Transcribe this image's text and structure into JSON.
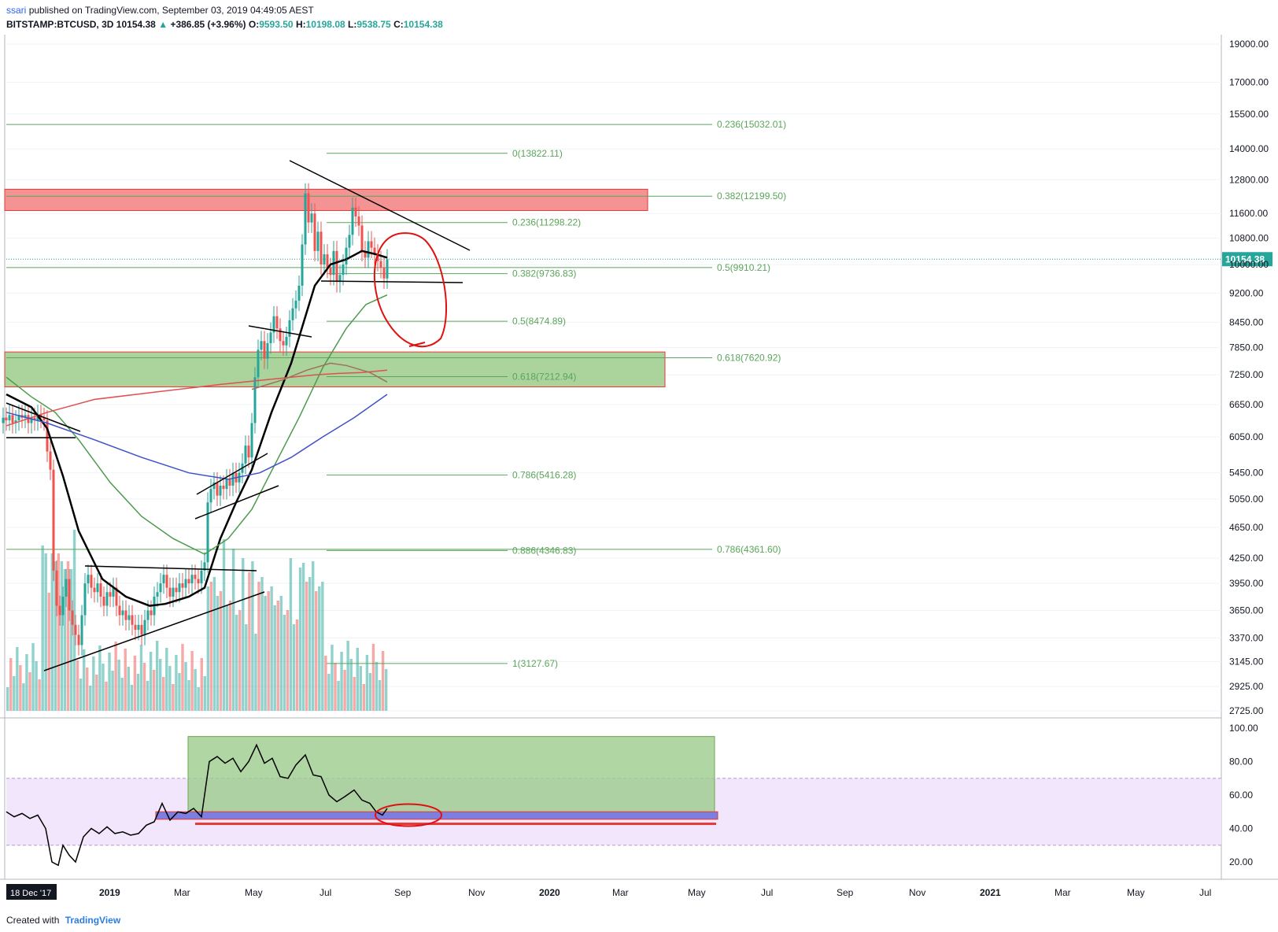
{
  "header": {
    "user": "ssari",
    "published": "published on TradingView.com, September 03, 2019 04:49:05 AEST",
    "symbol": "BITSTAMP:BTCUSD, 3D",
    "last": "10154.38",
    "change_arrow": "▲",
    "change": "+386.85 (+3.96%)",
    "o_label": "O:",
    "o": "9593.50",
    "h_label": "H:",
    "h": "10198.08",
    "l_label": "L:",
    "l": "9538.75",
    "c_label": "C:",
    "c": "10154.38"
  },
  "footer": {
    "created_with": "Created with",
    "brand": "TradingView"
  },
  "colors": {
    "up": "#26a69a",
    "down": "#ef5350",
    "ma_black": "#000000",
    "ma_green": "#4c9a4c",
    "ma_red": "#e05050",
    "ma_blue": "#3f51c7",
    "ma_brown": "#a0705a",
    "fib_green": "#5aa55a",
    "resistance_zone": "#f28080",
    "support_zone": "#9ccc8c",
    "rsi_zone": "#f1e6fb",
    "annotation_red": "#e01010"
  },
  "chart_data": [
    {
      "type": "candlestick",
      "title": "BITSTAMP:BTCUSD, 3D",
      "y_scale": "log",
      "ylim": [
        2725,
        19000
      ],
      "price_ticks": [
        "19000.00",
        "17000.00",
        "15500.00",
        "14000.00",
        "12800.00",
        "11600.00",
        "10800.00",
        "10000.00",
        "9200.00",
        "8450.00",
        "7850.00",
        "7250.00",
        "6650.00",
        "6050.00",
        "5450.00",
        "5050.00",
        "4650.00",
        "4250.00",
        "3950.00",
        "3650.00",
        "3370.00",
        "3145.00",
        "2925.00",
        "2725.00"
      ],
      "time_ticks": [
        "18 Dec '17",
        "2019",
        "Mar",
        "May",
        "Jul",
        "Sep",
        "Nov",
        "2020",
        "Mar",
        "May",
        "Jul",
        "Sep",
        "Nov",
        "2021",
        "Mar",
        "May",
        "Jul"
      ],
      "last_price_label": "10154.38",
      "fib_retracement_small": [
        {
          "label": "0(13822.11)",
          "value": 13822.11
        },
        {
          "label": "0.236(11298.22)",
          "value": 11298.22
        },
        {
          "label": "0.382(9736.83)",
          "value": 9736.83
        },
        {
          "label": "0.5(8474.89)",
          "value": 8474.89
        },
        {
          "label": "0.618(7212.94)",
          "value": 7212.94
        },
        {
          "label": "0.786(5416.28)",
          "value": 5416.28
        },
        {
          "label": "0.886(4346.83)",
          "value": 4346.83
        },
        {
          "label": "1(3127.67)",
          "value": 3127.67
        }
      ],
      "fib_retracement_large": [
        {
          "label": "0.236(15032.01)",
          "value": 15032.01
        },
        {
          "label": "0.382(12199.50)",
          "value": 12199.5
        },
        {
          "label": "0.5(9910.21)",
          "value": 9910.21
        },
        {
          "label": "0.618(7620.92)",
          "value": 7620.92
        },
        {
          "label": "0.786(4361.60)",
          "value": 4361.6
        }
      ],
      "zones": [
        {
          "name": "resistance",
          "low": 11700,
          "high": 12450,
          "color": "#f28080"
        },
        {
          "name": "support",
          "low": 7000,
          "high": 7750,
          "color": "#9ccc8c"
        }
      ],
      "price_path": [
        [
          0,
          6300
        ],
        [
          4,
          6400
        ],
        [
          8,
          6350
        ],
        [
          12,
          6450
        ],
        [
          16,
          6300
        ],
        [
          20,
          6350
        ],
        [
          24,
          6450
        ],
        [
          28,
          6400
        ],
        [
          32,
          6450
        ],
        [
          36,
          6300
        ],
        [
          40,
          6400
        ],
        [
          44,
          6350
        ],
        [
          48,
          6450
        ],
        [
          52,
          6400
        ],
        [
          56,
          6350
        ],
        [
          60,
          5800
        ],
        [
          64,
          5500
        ],
        [
          68,
          4100
        ],
        [
          72,
          3700
        ],
        [
          76,
          3600
        ],
        [
          80,
          3800
        ],
        [
          84,
          4000
        ],
        [
          88,
          3650
        ],
        [
          92,
          3500
        ],
        [
          96,
          3400
        ],
        [
          100,
          3300
        ],
        [
          104,
          3600
        ],
        [
          108,
          3950
        ],
        [
          112,
          4050
        ],
        [
          116,
          3900
        ],
        [
          120,
          3850
        ],
        [
          124,
          3950
        ],
        [
          128,
          3800
        ],
        [
          132,
          3700
        ],
        [
          136,
          3850
        ],
        [
          140,
          3800
        ],
        [
          144,
          3900
        ],
        [
          148,
          3700
        ],
        [
          152,
          3600
        ],
        [
          156,
          3650
        ],
        [
          160,
          3550
        ],
        [
          164,
          3600
        ],
        [
          168,
          3500
        ],
        [
          172,
          3450
        ],
        [
          176,
          3500
        ],
        [
          180,
          3400
        ],
        [
          184,
          3550
        ],
        [
          188,
          3650
        ],
        [
          192,
          3600
        ],
        [
          196,
          3800
        ],
        [
          200,
          3850
        ],
        [
          204,
          3950
        ],
        [
          208,
          4050
        ],
        [
          212,
          3900
        ],
        [
          216,
          3800
        ],
        [
          220,
          3900
        ],
        [
          224,
          3850
        ],
        [
          228,
          3950
        ],
        [
          232,
          3900
        ],
        [
          236,
          4000
        ],
        [
          240,
          3950
        ],
        [
          244,
          4050
        ],
        [
          248,
          4000
        ],
        [
          252,
          3950
        ],
        [
          256,
          4100
        ],
        [
          260,
          4200
        ],
        [
          264,
          5000
        ],
        [
          268,
          5200
        ],
        [
          272,
          5300
        ],
        [
          276,
          5100
        ],
        [
          280,
          5250
        ],
        [
          284,
          5200
        ],
        [
          288,
          5350
        ],
        [
          292,
          5250
        ],
        [
          296,
          5450
        ],
        [
          300,
          5300
        ],
        [
          304,
          5450
        ],
        [
          308,
          5600
        ],
        [
          312,
          5900
        ],
        [
          316,
          5700
        ],
        [
          320,
          6300
        ],
        [
          324,
          7200
        ],
        [
          328,
          7800
        ],
        [
          332,
          8000
        ],
        [
          336,
          7600
        ],
        [
          340,
          7950
        ],
        [
          344,
          8200
        ],
        [
          348,
          8600
        ],
        [
          352,
          8300
        ],
        [
          356,
          8000
        ],
        [
          360,
          7900
        ],
        [
          364,
          8100
        ],
        [
          368,
          8500
        ],
        [
          372,
          8800
        ],
        [
          376,
          9000
        ],
        [
          380,
          9400
        ],
        [
          384,
          10600
        ],
        [
          388,
          12300
        ],
        [
          392,
          11300
        ],
        [
          396,
          11600
        ],
        [
          400,
          10400
        ],
        [
          404,
          11000
        ],
        [
          408,
          10000
        ],
        [
          412,
          10300
        ],
        [
          416,
          9900
        ],
        [
          420,
          9700
        ],
        [
          424,
          10400
        ],
        [
          428,
          9500
        ],
        [
          432,
          9700
        ],
        [
          436,
          10000
        ],
        [
          440,
          10500
        ],
        [
          444,
          10900
        ],
        [
          448,
          11800
        ],
        [
          452,
          11500
        ],
        [
          456,
          11200
        ],
        [
          460,
          10400
        ],
        [
          464,
          10200
        ],
        [
          468,
          10700
        ],
        [
          472,
          10500
        ],
        [
          476,
          10300
        ],
        [
          480,
          10100
        ],
        [
          484,
          9900
        ],
        [
          488,
          9600
        ],
        [
          492,
          10154
        ]
      ],
      "volume_bars": {
        "bars": 120,
        "x_start": 8,
        "x_end": 493
      },
      "moving_averages": [
        {
          "name": "",
          "color": "#000000",
          "points": [
            [
              8,
              6850
            ],
            [
              40,
              6600
            ],
            [
              60,
              6200
            ],
            [
              80,
              5400
            ],
            [
              100,
              4600
            ],
            [
              130,
              4000
            ],
            [
              160,
              3800
            ],
            [
              190,
              3700
            ],
            [
              210,
              3720
            ],
            [
              240,
              3800
            ],
            [
              260,
              3900
            ],
            [
              280,
              4500
            ],
            [
              300,
              5000
            ],
            [
              320,
              5500
            ],
            [
              345,
              6500
            ],
            [
              370,
              7500
            ],
            [
              400,
              9400
            ],
            [
              420,
              10000
            ],
            [
              440,
              10150
            ],
            [
              460,
              10400
            ],
            [
              478,
              10300
            ],
            [
              492,
              10200
            ]
          ]
        },
        {
          "name": "",
          "color": "#4c9a4c",
          "points": [
            [
              8,
              7200
            ],
            [
              40,
              6800
            ],
            [
              70,
              6500
            ],
            [
              100,
              6000
            ],
            [
              140,
              5300
            ],
            [
              180,
              4800
            ],
            [
              220,
              4500
            ],
            [
              260,
              4300
            ],
            [
              290,
              4500
            ],
            [
              320,
              4900
            ],
            [
              350,
              5600
            ],
            [
              380,
              6400
            ],
            [
              410,
              7400
            ],
            [
              440,
              8300
            ],
            [
              465,
              8900
            ],
            [
              492,
              9150
            ]
          ]
        },
        {
          "name": "",
          "color": "#e05050",
          "points": [
            [
              8,
              6250
            ],
            [
              60,
              6500
            ],
            [
              120,
              6750
            ],
            [
              200,
              6900
            ],
            [
              280,
              7050
            ],
            [
              340,
              7150
            ],
            [
              400,
              7250
            ],
            [
              430,
              7280
            ],
            [
              460,
              7300
            ],
            [
              492,
              7350
            ]
          ]
        },
        {
          "name": "",
          "color": "#3f51c7",
          "points": [
            [
              8,
              6500
            ],
            [
              60,
              6300
            ],
            [
              120,
              6000
            ],
            [
              180,
              5700
            ],
            [
              240,
              5450
            ],
            [
              290,
              5350
            ],
            [
              330,
              5450
            ],
            [
              370,
              5700
            ],
            [
              410,
              6050
            ],
            [
              450,
              6400
            ],
            [
              492,
              6850
            ]
          ]
        },
        {
          "name": "",
          "color": "#a0705a",
          "points": [
            [
              320,
              6950
            ],
            [
              360,
              7150
            ],
            [
              390,
              7350
            ],
            [
              420,
              7500
            ],
            [
              440,
              7450
            ],
            [
              470,
              7300
            ],
            [
              492,
              7100
            ]
          ]
        }
      ]
    },
    {
      "type": "line",
      "title": "RSI",
      "ylim": [
        15,
        100
      ],
      "y_ticks": [
        "100.00",
        "80.00",
        "60.00",
        "40.00",
        "20.00"
      ],
      "band": [
        30,
        70
      ],
      "points": [
        [
          8,
          50
        ],
        [
          18,
          47
        ],
        [
          28,
          49
        ],
        [
          38,
          46
        ],
        [
          48,
          48
        ],
        [
          58,
          40
        ],
        [
          66,
          20
        ],
        [
          74,
          18
        ],
        [
          80,
          30
        ],
        [
          88,
          24
        ],
        [
          96,
          20
        ],
        [
          106,
          35
        ],
        [
          116,
          40
        ],
        [
          126,
          37
        ],
        [
          136,
          41
        ],
        [
          146,
          37
        ],
        [
          156,
          38
        ],
        [
          166,
          36
        ],
        [
          176,
          37
        ],
        [
          186,
          42
        ],
        [
          196,
          44
        ],
        [
          206,
          55
        ],
        [
          216,
          45
        ],
        [
          226,
          50
        ],
        [
          236,
          49
        ],
        [
          246,
          52
        ],
        [
          256,
          47
        ],
        [
          266,
          80
        ],
        [
          276,
          83
        ],
        [
          286,
          79
        ],
        [
          296,
          82
        ],
        [
          306,
          74
        ],
        [
          316,
          80
        ],
        [
          326,
          90
        ],
        [
          336,
          79
        ],
        [
          346,
          82
        ],
        [
          356,
          71
        ],
        [
          366,
          70
        ],
        [
          376,
          78
        ],
        [
          388,
          84
        ],
        [
          398,
          72
        ],
        [
          408,
          71
        ],
        [
          418,
          60
        ],
        [
          428,
          56
        ],
        [
          438,
          59
        ],
        [
          450,
          63
        ],
        [
          460,
          57
        ],
        [
          470,
          55
        ],
        [
          478,
          50
        ],
        [
          486,
          48
        ],
        [
          492,
          52
        ]
      ]
    }
  ]
}
